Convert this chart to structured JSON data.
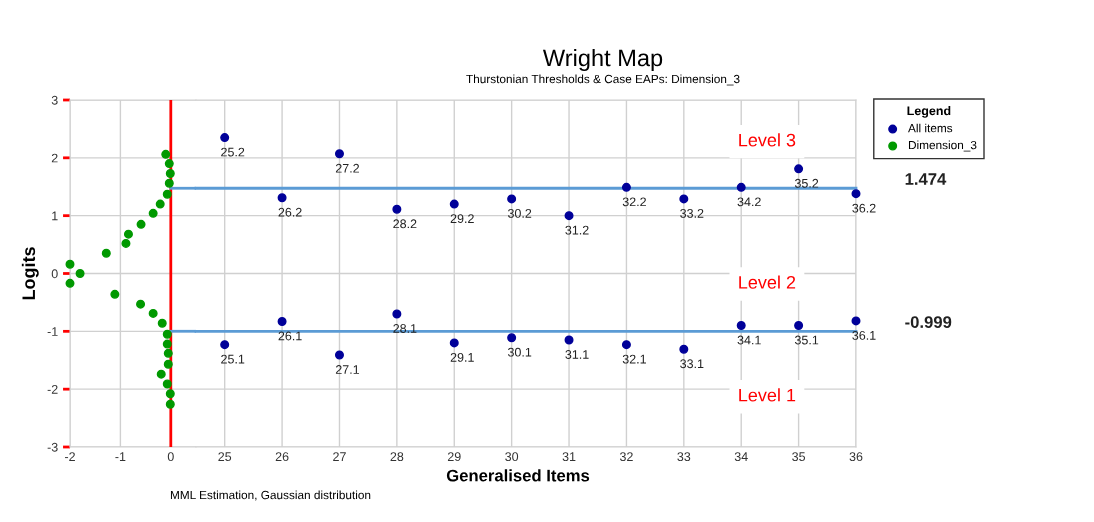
{
  "chart_data": [
    {
      "type": "scatter",
      "ylabel": "Logits",
      "series": [
        {
          "name": "Dimension_3",
          "color": "#009900",
          "x": [
            -0.1,
            -0.03,
            -0.01,
            -0.03,
            -0.07,
            -0.21,
            -0.35,
            -0.59,
            -0.84,
            -0.89,
            -1.28,
            -2.0,
            -1.8,
            -2.0,
            -1.11,
            -0.6,
            -0.35,
            -0.17,
            -0.07,
            -0.07,
            -0.05,
            -0.05,
            -0.19,
            -0.07,
            -0.01,
            -0.01
          ],
          "values": [
            2.06,
            1.9,
            1.73,
            1.56,
            1.37,
            1.2,
            1.04,
            0.85,
            0.68,
            0.52,
            0.35,
            0.16,
            0.0,
            -0.17,
            -0.36,
            -0.53,
            -0.69,
            -0.86,
            -1.05,
            -1.22,
            -1.38,
            -1.57,
            -1.74,
            -1.91,
            -2.08,
            -2.26
          ]
        }
      ],
      "xlim": [
        -2,
        0.5
      ],
      "xticks": [
        -2,
        -1,
        0
      ],
      "ylim": [
        -3,
        3
      ],
      "yticks": [
        -3,
        -2,
        -1,
        0,
        1,
        2,
        3
      ],
      "ref_lines": [
        {
          "axis": "x",
          "value": 0,
          "color": "#ff0000"
        },
        {
          "axis": "y",
          "value": 1.474,
          "color": "#5b9bd5"
        },
        {
          "axis": "y",
          "value": -0.999,
          "color": "#5b9bd5"
        }
      ],
      "grid": true,
      "legend": "top right",
      "marker": "circle"
    },
    {
      "type": "scatter",
      "title": "Wright Map",
      "subtitle": "Thurstonian Thresholds & Case EAPs: Dimension_3",
      "xlabel": "Generalised Items",
      "legend_title": "Legend",
      "categories": [
        "25",
        "26",
        "27",
        "28",
        "29",
        "30",
        "31",
        "32",
        "33",
        "34",
        "35",
        "36"
      ],
      "series": [
        {
          "name": "All items",
          "color": "#000099",
          "x": [
            "25",
            "25",
            "26",
            "26",
            "27",
            "27",
            "28",
            "28",
            "29",
            "29",
            "30",
            "30",
            "31",
            "31",
            "32",
            "32",
            "33",
            "33",
            "34",
            "34",
            "35",
            "35",
            "36",
            "36"
          ],
          "values": [
            2.35,
            -1.23,
            1.31,
            -0.83,
            2.07,
            -1.41,
            1.11,
            -0.7,
            1.2,
            -1.2,
            1.29,
            -1.11,
            1.0,
            -1.15,
            1.49,
            -1.23,
            1.29,
            -1.31,
            1.49,
            -0.9,
            1.81,
            -0.9,
            1.38,
            -0.82
          ]
        }
      ],
      "ylim": [
        -3,
        3
      ],
      "yticks": [
        -3,
        -2,
        -1,
        0,
        1,
        2,
        3
      ],
      "tick_labels": "x",
      "ref_lines": [
        {
          "axis": "y",
          "value": 1.474,
          "label": "1.474",
          "color": "#5b9bd5"
        },
        {
          "axis": "y",
          "value": -0.999,
          "label": "-0.999",
          "color": "#5b9bd5"
        }
      ],
      "annotations": [
        "Level 3",
        "Level 2",
        "Level 1",
        "MML Estimation, Gaussian distribution",
        {
          "text": "25.2",
          "x": "25",
          "y": 2.35
        },
        {
          "text": "25.1",
          "x": "25",
          "y": -1.23
        },
        {
          "text": "26.2",
          "x": "26",
          "y": 1.31
        },
        {
          "text": "26.1",
          "x": "26",
          "y": -0.83
        },
        {
          "text": "27.2",
          "x": "27",
          "y": 2.07
        },
        {
          "text": "27.1",
          "x": "27",
          "y": -1.41
        },
        {
          "text": "28.2",
          "x": "28",
          "y": 1.11
        },
        {
          "text": "28.1",
          "x": "28",
          "y": -0.7
        },
        {
          "text": "29.2",
          "x": "29",
          "y": 1.2
        },
        {
          "text": "29.1",
          "x": "29",
          "y": -1.2
        },
        {
          "text": "30.2",
          "x": "30",
          "y": 1.29
        },
        {
          "text": "30.1",
          "x": "30",
          "y": -1.11
        },
        {
          "text": "31.2",
          "x": "31",
          "y": 1.0
        },
        {
          "text": "31.1",
          "x": "31",
          "y": -1.15
        },
        {
          "text": "32.2",
          "x": "32",
          "y": 1.49
        },
        {
          "text": "32.1",
          "x": "32",
          "y": -1.23
        },
        {
          "text": "33.2",
          "x": "33",
          "y": 1.29
        },
        {
          "text": "33.1",
          "x": "33",
          "y": -1.31
        },
        {
          "text": "34.2",
          "x": "34",
          "y": 1.49
        },
        {
          "text": "34.1",
          "x": "34",
          "y": -0.9
        },
        {
          "text": "35.2",
          "x": "35",
          "y": 1.81
        },
        {
          "text": "35.1",
          "x": "35",
          "y": -0.9
        },
        {
          "text": "36.2",
          "x": "36",
          "y": 1.38
        },
        {
          "text": "36.1",
          "x": "36",
          "y": -0.82
        }
      ],
      "grid": true,
      "legend": "top right",
      "marker": "circle"
    }
  ]
}
